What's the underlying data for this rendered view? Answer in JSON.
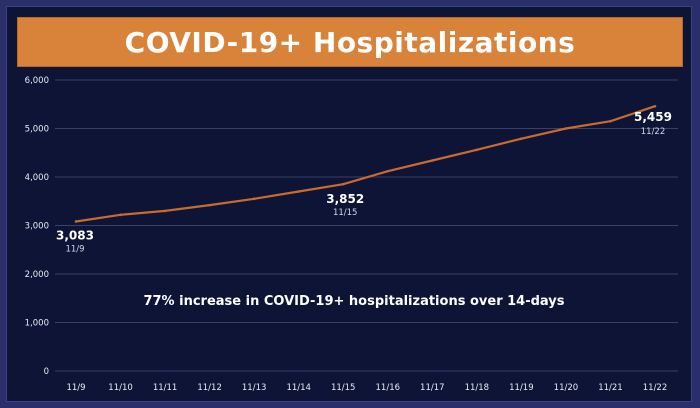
{
  "chart_data": {
    "type": "line",
    "title": "COVID-19+ Hospitalizations",
    "categories": [
      "11/9",
      "11/10",
      "11/11",
      "11/12",
      "11/13",
      "11/14",
      "11/15",
      "11/16",
      "11/17",
      "11/18",
      "11/19",
      "11/20",
      "11/21",
      "11/22"
    ],
    "series": [
      {
        "values": [
          3083,
          3220,
          3300,
          3420,
          3550,
          3700,
          3852,
          4120,
          4340,
          4560,
          4790,
          5000,
          5150,
          5459
        ]
      }
    ],
    "ylim": [
      0,
      6000
    ],
    "yticks": [
      0,
      1000,
      2000,
      3000,
      4000,
      5000,
      6000
    ],
    "ytick_labels": [
      "0",
      "1,000",
      "2,000",
      "3,000",
      "4,000",
      "5,000",
      "6,000"
    ],
    "grid": true,
    "annotations": [
      {
        "index": 0,
        "value_label": "3,083",
        "date_label": "11/9"
      },
      {
        "index": 6,
        "value_label": "3,852",
        "date_label": "11/15"
      },
      {
        "index": 13,
        "value_label": "5,459",
        "date_label": "11/22"
      }
    ],
    "note": "77% increase in COVID-19+ hospitalizations over 14-days",
    "colors": {
      "line": "#c86b2f",
      "title_bg": "#d9823a",
      "background": "#0e1436",
      "grid": "#3a4068"
    }
  }
}
